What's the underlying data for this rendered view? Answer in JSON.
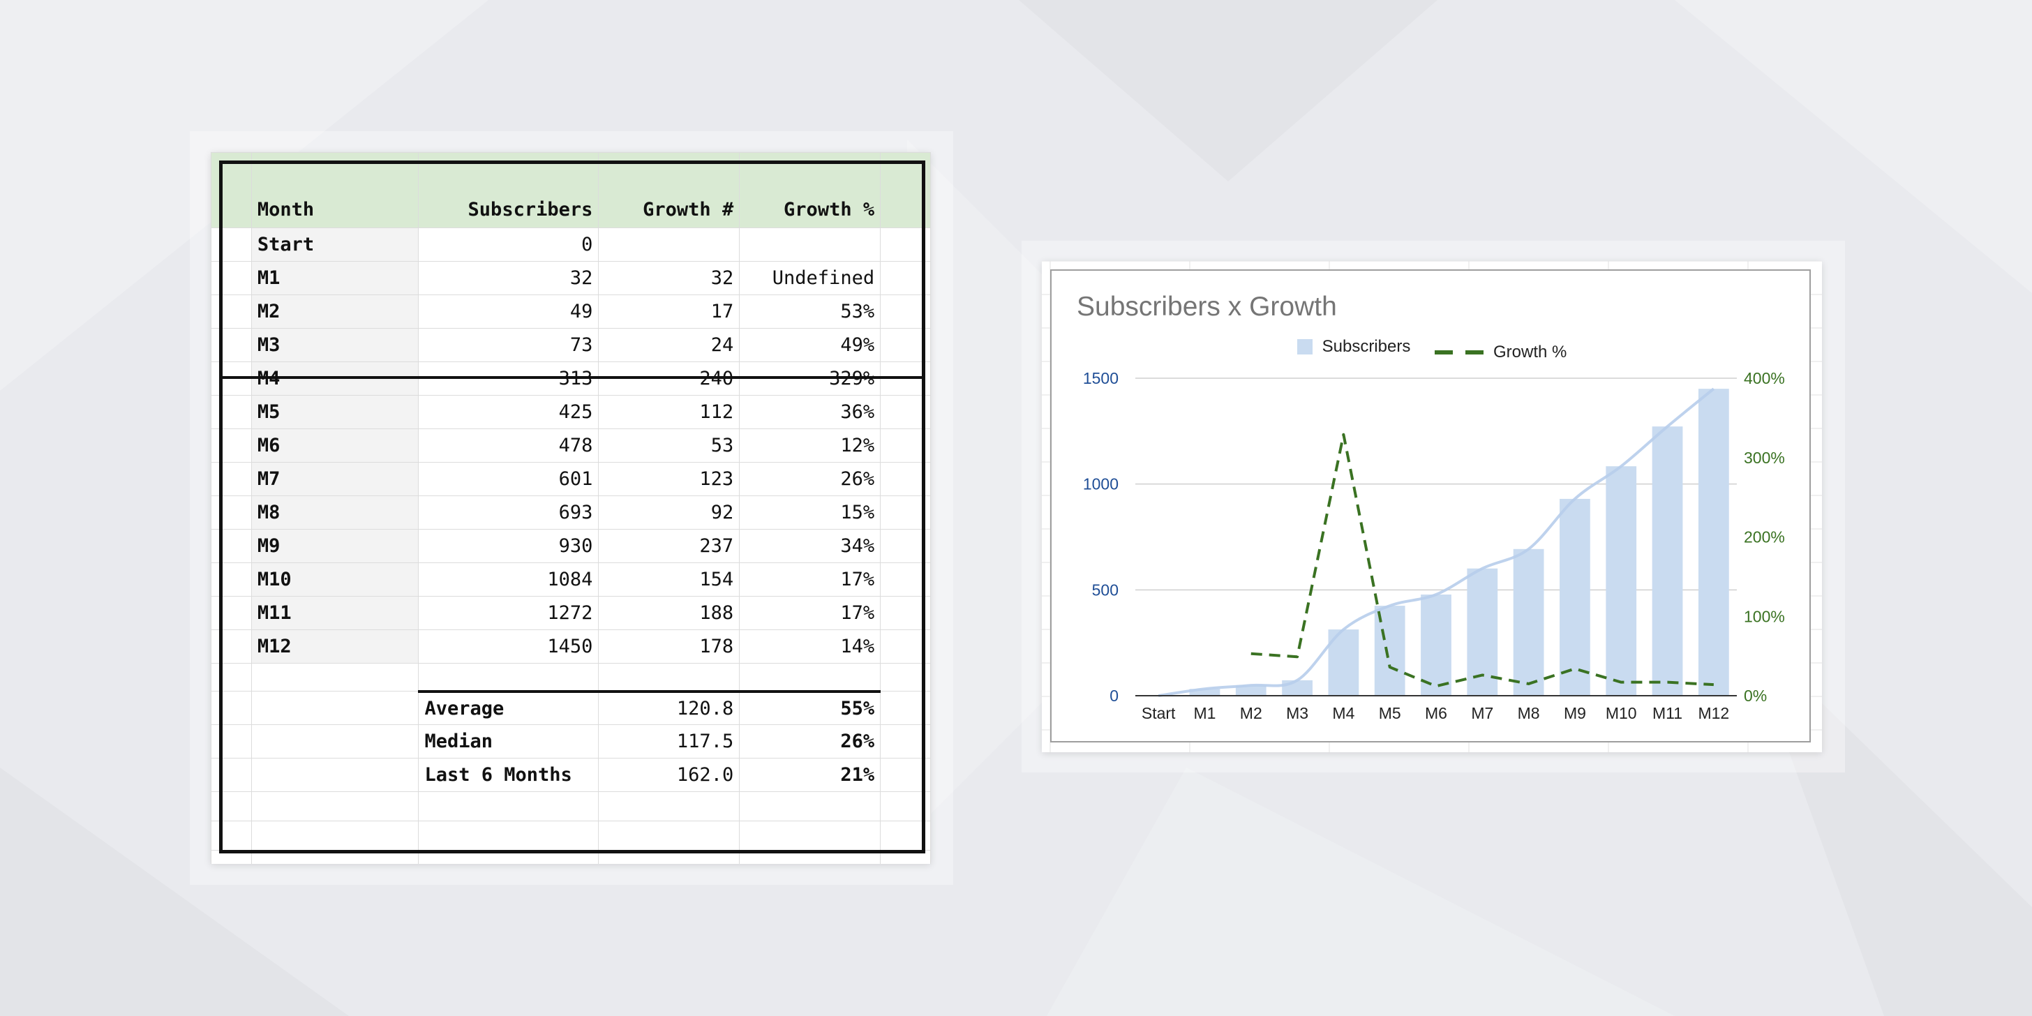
{
  "sheet": {
    "headers": {
      "month": "Month",
      "subscribers": "Subscribers",
      "growth_num": "Growth #",
      "growth_pct": "Growth %"
    },
    "rows": [
      {
        "month": "Start",
        "subscribers": "0",
        "growth_num": "",
        "growth_pct": ""
      },
      {
        "month": "M1",
        "subscribers": "32",
        "growth_num": "32",
        "growth_pct": "Undefined"
      },
      {
        "month": "M2",
        "subscribers": "49",
        "growth_num": "17",
        "growth_pct": "53%"
      },
      {
        "month": "M3",
        "subscribers": "73",
        "growth_num": "24",
        "growth_pct": "49%"
      },
      {
        "month": "M4",
        "subscribers": "313",
        "growth_num": "240",
        "growth_pct": "329%"
      },
      {
        "month": "M5",
        "subscribers": "425",
        "growth_num": "112",
        "growth_pct": "36%"
      },
      {
        "month": "M6",
        "subscribers": "478",
        "growth_num": "53",
        "growth_pct": "12%"
      },
      {
        "month": "M7",
        "subscribers": "601",
        "growth_num": "123",
        "growth_pct": "26%"
      },
      {
        "month": "M8",
        "subscribers": "693",
        "growth_num": "92",
        "growth_pct": "15%"
      },
      {
        "month": "M9",
        "subscribers": "930",
        "growth_num": "237",
        "growth_pct": "34%"
      },
      {
        "month": "M10",
        "subscribers": "1084",
        "growth_num": "154",
        "growth_pct": "17%"
      },
      {
        "month": "M11",
        "subscribers": "1272",
        "growth_num": "188",
        "growth_pct": "17%"
      },
      {
        "month": "M12",
        "subscribers": "1450",
        "growth_num": "178",
        "growth_pct": "14%"
      }
    ],
    "summary": [
      {
        "label": "Average",
        "growth_num": "120.8",
        "growth_pct": "55%"
      },
      {
        "label": "Median",
        "growth_num": "117.5",
        "growth_pct": "26%"
      },
      {
        "label": "Last 6 Months",
        "growth_num": "162.0",
        "growth_pct": "21%"
      }
    ]
  },
  "chart_data": {
    "type": "bar",
    "title": "Subscribers x Growth",
    "legend_position": "top",
    "categories": [
      "Start",
      "M1",
      "M2",
      "M3",
      "M4",
      "M5",
      "M6",
      "M7",
      "M8",
      "M9",
      "M10",
      "M11",
      "M12"
    ],
    "series": [
      {
        "name": "Subscribers",
        "type": "bar",
        "axis": "left",
        "color": "#c9dbf0",
        "values": [
          0,
          32,
          49,
          73,
          313,
          425,
          478,
          601,
          693,
          930,
          1084,
          1272,
          1450
        ]
      },
      {
        "name": "Growth %",
        "type": "line",
        "style": "dashed",
        "axis": "right",
        "color": "#3a7222",
        "values": [
          null,
          null,
          53,
          49,
          329,
          36,
          12,
          26,
          15,
          34,
          17,
          17,
          14
        ]
      }
    ],
    "trendline": {
      "series": "Subscribers",
      "color": "#b7cdeb"
    },
    "y_left": {
      "range": [
        0,
        1500
      ],
      "ticks": [
        "0",
        "500",
        "1000",
        "1500"
      ],
      "color": "#1f4e96"
    },
    "y_right": {
      "range": [
        0,
        400
      ],
      "ticks": [
        "0%",
        "100%",
        "200%",
        "300%",
        "400%"
      ],
      "color": "#3a7222"
    },
    "grid": true
  }
}
